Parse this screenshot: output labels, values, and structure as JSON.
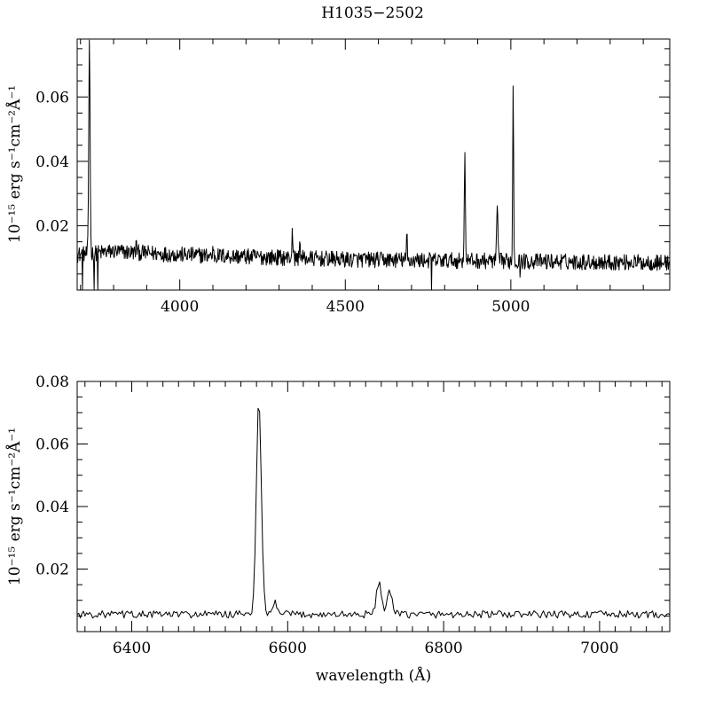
{
  "title": "H1035−2502",
  "chart_data": [
    {
      "type": "line",
      "panel": "top",
      "xlim": [
        3690,
        5480
      ],
      "ylim": [
        0.0,
        0.078
      ],
      "xticks_major": [
        4000,
        4500,
        5000
      ],
      "xtick_labels": [
        "4000",
        "4500",
        "5000"
      ],
      "yticks_major": [
        0.02,
        0.04,
        0.06
      ],
      "ytick_labels": [
        "0.02",
        "0.04",
        "0.06"
      ],
      "xlabel": "",
      "ylabel": "10⁻¹⁵ erg s⁻¹cm⁻²Å⁻¹",
      "continuum": [
        [
          3690,
          0.011
        ],
        [
          3800,
          0.012
        ],
        [
          4000,
          0.011
        ],
        [
          4500,
          0.0095
        ],
        [
          5000,
          0.009
        ],
        [
          5480,
          0.0085
        ]
      ],
      "noise_amplitude": 0.0025,
      "lines": [
        {
          "x": 3727,
          "y": 0.078,
          "width": 2.0
        },
        {
          "x": 3869,
          "y": 0.016,
          "width": 1.0
        },
        {
          "x": 4101,
          "y": 0.014,
          "width": 1.0
        },
        {
          "x": 4340,
          "y": 0.0205,
          "width": 1.2
        },
        {
          "x": 4363,
          "y": 0.018,
          "width": 1.0
        },
        {
          "x": 4686,
          "y": 0.027,
          "width": 0.6
        },
        {
          "x": 4861,
          "y": 0.041,
          "width": 1.8
        },
        {
          "x": 4959,
          "y": 0.027,
          "width": 1.8
        },
        {
          "x": 5007,
          "y": 0.065,
          "width": 1.4
        }
      ],
      "dips": [
        {
          "x": 3706,
          "y": 0.0
        },
        {
          "x": 3741,
          "y": 0.0
        },
        {
          "x": 3752,
          "y": 0.0
        },
        {
          "x": 4760,
          "y": 0.0
        },
        {
          "x": 5028,
          "y": 0.004
        }
      ]
    },
    {
      "type": "line",
      "panel": "bottom",
      "xlim": [
        6330,
        7090
      ],
      "ylim": [
        0.0,
        0.08
      ],
      "xticks_major": [
        6400,
        6600,
        6800,
        7000
      ],
      "xtick_labels": [
        "6400",
        "6600",
        "6800",
        "7000"
      ],
      "yticks_major": [
        0.02,
        0.04,
        0.06,
        0.08
      ],
      "ytick_labels": [
        "0.02",
        "0.04",
        "0.06",
        "0.08"
      ],
      "xlabel": "wavelength (Å)",
      "ylabel": "10⁻¹⁵ erg s⁻¹cm⁻²Å⁻¹",
      "continuum": [
        [
          6330,
          0.0055
        ],
        [
          6700,
          0.0055
        ],
        [
          7090,
          0.0055
        ]
      ],
      "noise_amplitude": 0.0012,
      "lines": [
        {
          "x": 6563,
          "y": 0.0735,
          "width": 3.2
        },
        {
          "x": 6584,
          "y": 0.0095,
          "width": 2.5
        },
        {
          "x": 6717,
          "y": 0.016,
          "width": 3.2
        },
        {
          "x": 6731,
          "y": 0.0125,
          "width": 3.2
        }
      ],
      "dips": []
    }
  ]
}
